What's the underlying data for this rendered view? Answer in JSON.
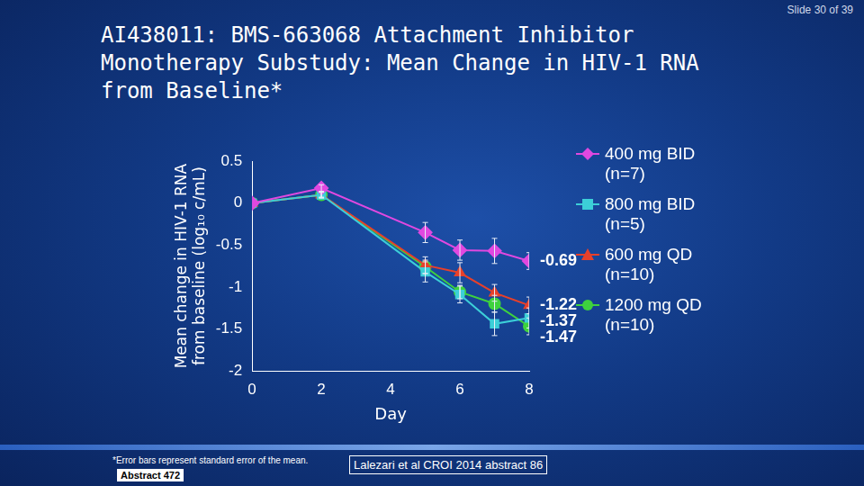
{
  "page": {
    "slide_number": "Slide 30 of 39",
    "footnote": "*Error bars represent standard error of the mean.",
    "abstract": "Abstract 472",
    "citation": "Lalezari et al CROI 2014 abstract 86"
  },
  "chart_data": {
    "type": "line",
    "title": "AI438011: BMS-663068 Attachment Inhibitor Monotherapy Substudy: Mean Change in HIV-1 RNA from Baseline*",
    "x_label": "Day",
    "y_label": [
      "Mean change in HIV-1 RNA",
      "from baseline (log₁₀ c/mL)"
    ],
    "x": [
      0,
      2,
      5,
      6,
      7,
      8
    ],
    "xlim": [
      0,
      8
    ],
    "xticks": [
      0,
      2,
      4,
      6,
      8
    ],
    "ylim": [
      -2,
      0.5
    ],
    "yticks": [
      -2,
      -1.5,
      -1,
      -0.5,
      0,
      0.5
    ],
    "grid": false,
    "legend": "right",
    "series": [
      {
        "name": "400 mg BID (n=7)",
        "color": "#e048e0",
        "marker": "diamond",
        "line_style": "solid",
        "values": [
          0,
          0.18,
          -0.35,
          -0.56,
          -0.57,
          -0.69
        ],
        "errors": [
          0,
          0.04,
          0.12,
          0.12,
          0.15,
          0.1
        ],
        "value_labels": [
          null,
          null,
          null,
          null,
          null,
          "-0.69"
        ]
      },
      {
        "name": "800 mg BID (n=5)",
        "color": "#3ccfd8",
        "marker": "square",
        "line_style": "solid",
        "values": [
          0,
          0.1,
          -0.82,
          -1.09,
          -1.44,
          -1.37
        ],
        "errors": [
          0,
          0.04,
          0.12,
          0.1,
          0.14,
          0.12
        ],
        "value_labels": [
          null,
          null,
          null,
          null,
          null,
          "-1.37"
        ]
      },
      {
        "name": "600 mg QD (n=10)",
        "color": "#e8402a",
        "marker": "triangle",
        "line_style": "solid",
        "values": [
          0,
          0.1,
          -0.74,
          -0.83,
          -1.07,
          -1.22
        ],
        "errors": [
          0,
          0.03,
          0.1,
          0.12,
          0.1,
          0.1
        ],
        "value_labels": [
          null,
          null,
          null,
          null,
          null,
          "-1.22"
        ]
      },
      {
        "name": "1200 mg QD (n=10)",
        "color": "#3ed23e",
        "marker": "circle",
        "line_style": "solid",
        "values": [
          0,
          0.1,
          -0.76,
          -1.06,
          -1.2,
          -1.47
        ],
        "errors": [
          0,
          0.03,
          0.08,
          0.08,
          0.1,
          0.1
        ],
        "value_labels": [
          null,
          null,
          null,
          null,
          null,
          "-1.47"
        ]
      }
    ]
  }
}
